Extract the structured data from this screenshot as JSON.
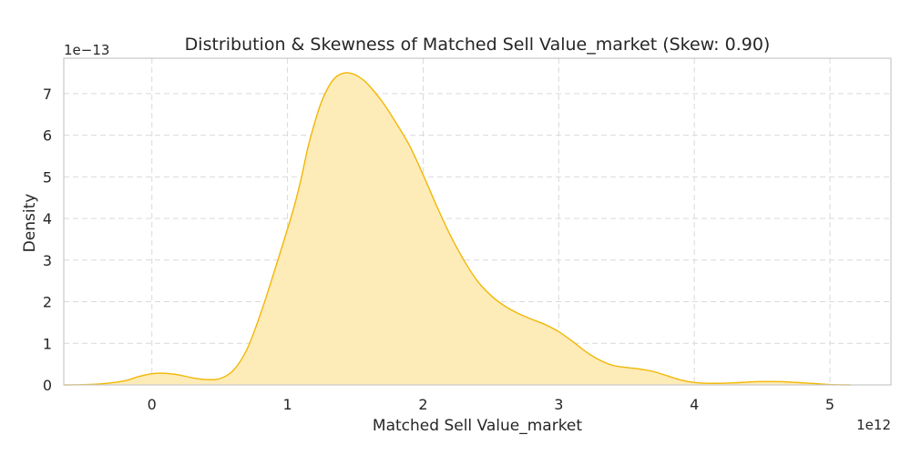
{
  "chart_data": {
    "type": "area",
    "title": "Distribution & Skewness of Matched Sell Value_market (Skew: 0.90)",
    "xlabel": "Matched Sell Value_market",
    "ylabel": "Density",
    "x_offset_label": "1e12",
    "y_offset_label": "1e−13",
    "xlim": [
      -0.65,
      5.45
    ],
    "ylim": [
      0,
      7.85
    ],
    "x_ticks": [
      0,
      1,
      2,
      3,
      4,
      5
    ],
    "x_tick_labels": [
      "0",
      "1",
      "2",
      "3",
      "4",
      "5"
    ],
    "y_ticks": [
      0,
      1,
      2,
      3,
      4,
      5,
      6,
      7
    ],
    "y_tick_labels": [
      "0",
      "1",
      "2",
      "3",
      "4",
      "5",
      "6",
      "7"
    ],
    "grid": true,
    "colors": {
      "line": "#f2b705",
      "fill": "#fdebb8"
    },
    "series": [
      {
        "x": [
          -0.65,
          -0.4,
          -0.2,
          -0.1,
          0.0,
          0.1,
          0.2,
          0.3,
          0.4,
          0.5,
          0.6,
          0.7,
          0.8,
          0.9,
          1.0,
          1.05,
          1.1,
          1.15,
          1.2,
          1.25,
          1.3,
          1.35,
          1.4,
          1.45,
          1.5,
          1.55,
          1.6,
          1.7,
          1.8,
          1.9,
          2.0,
          2.1,
          2.2,
          2.3,
          2.4,
          2.5,
          2.6,
          2.7,
          2.8,
          2.9,
          3.0,
          3.1,
          3.2,
          3.3,
          3.4,
          3.5,
          3.6,
          3.7,
          3.8,
          3.9,
          4.0,
          4.1,
          4.2,
          4.3,
          4.4,
          4.5,
          4.6,
          4.7,
          4.8,
          4.9,
          5.0,
          5.15
        ],
        "y": [
          0.0,
          0.02,
          0.1,
          0.2,
          0.27,
          0.28,
          0.24,
          0.17,
          0.13,
          0.15,
          0.35,
          0.85,
          1.7,
          2.7,
          3.75,
          4.3,
          4.95,
          5.7,
          6.3,
          6.8,
          7.15,
          7.38,
          7.48,
          7.5,
          7.45,
          7.35,
          7.2,
          6.8,
          6.3,
          5.75,
          5.05,
          4.3,
          3.6,
          3.0,
          2.5,
          2.15,
          1.9,
          1.72,
          1.58,
          1.45,
          1.28,
          1.05,
          0.8,
          0.6,
          0.47,
          0.42,
          0.38,
          0.32,
          0.22,
          0.12,
          0.06,
          0.04,
          0.04,
          0.05,
          0.07,
          0.08,
          0.08,
          0.07,
          0.05,
          0.03,
          0.01,
          0.0
        ]
      }
    ]
  }
}
